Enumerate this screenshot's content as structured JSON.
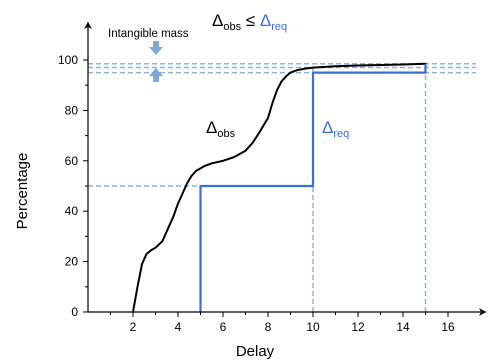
{
  "chart_data": {
    "type": "line",
    "title": "",
    "xlabel": "Delay",
    "ylabel": "Percentage",
    "xlim": [
      0,
      17
    ],
    "ylim": [
      0,
      100
    ],
    "x_ticks": [
      2,
      4,
      6,
      8,
      10,
      12,
      14,
      16
    ],
    "y_ticks": [
      0,
      20,
      40,
      60,
      80,
      100
    ],
    "grid": false,
    "series": [
      {
        "key": "obs",
        "color": "#000000",
        "x": [
          2.0,
          2.2,
          2.4,
          2.6,
          2.8,
          3.0,
          3.3,
          3.6,
          3.8,
          4.0,
          4.2,
          4.4,
          4.6,
          4.8,
          5.0,
          5.2,
          5.5,
          6.0,
          6.5,
          7.0,
          7.3,
          7.6,
          7.8,
          8.0,
          8.2,
          8.4,
          8.6,
          8.8,
          9.0,
          9.3,
          9.6,
          10.0,
          11.0,
          12.0,
          13.0,
          14.0,
          15.0
        ],
        "y": [
          0,
          10,
          19,
          23,
          24.5,
          25.5,
          28,
          34,
          38,
          43,
          47,
          51,
          54,
          56,
          57,
          58,
          59,
          60,
          61.5,
          64,
          67,
          71,
          74,
          77,
          83,
          88,
          91.5,
          93.5,
          95,
          96,
          96.5,
          97,
          97.5,
          97.8,
          98,
          98.2,
          98.5
        ]
      },
      {
        "key": "req",
        "color": "#3a6fd6",
        "step": true,
        "x": [
          5,
          5,
          10,
          10,
          15,
          15
        ],
        "y": [
          0,
          50,
          50,
          95,
          95,
          98
        ]
      }
    ],
    "reference_lines": {
      "horizontal": [
        50,
        95,
        97,
        98.5
      ],
      "vertical": [
        10,
        15
      ],
      "color": "#8fb3d9",
      "style": "dashed"
    },
    "annotations": {
      "intangible_mass": "Intangible mass",
      "condition_left": "Δ",
      "condition_left_sub": "obs",
      "condition_op": " ≤ ",
      "condition_right": "Δ",
      "condition_right_sub": "req",
      "obs_label": "Δ",
      "obs_label_sub": "obs",
      "req_label": "Δ",
      "req_label_sub": "req",
      "req_color": "#3a6fd6",
      "arrow_color": "#7fa7d8"
    }
  }
}
